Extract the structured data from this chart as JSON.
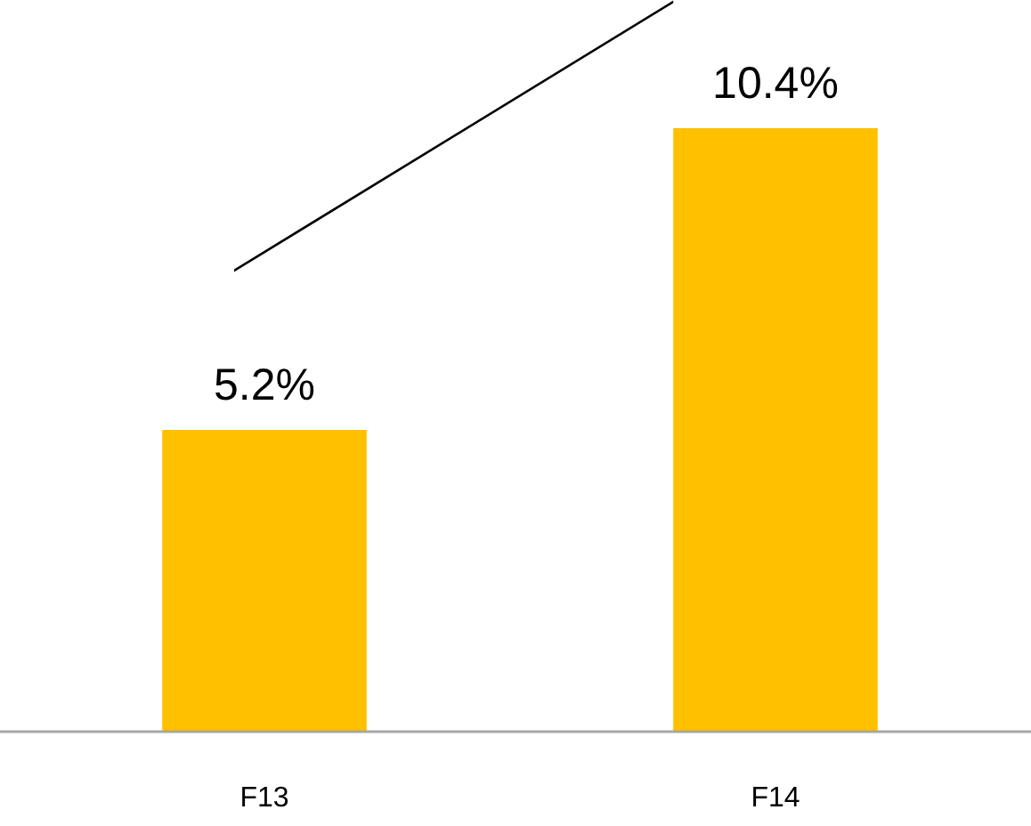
{
  "chart_data": {
    "type": "bar",
    "categories": [
      "F13",
      "F14"
    ],
    "values": [
      5.2,
      10.4
    ],
    "color": "#ffc000",
    "value_labels": [
      "5.2%",
      "10.4%"
    ],
    "grid": false
  }
}
